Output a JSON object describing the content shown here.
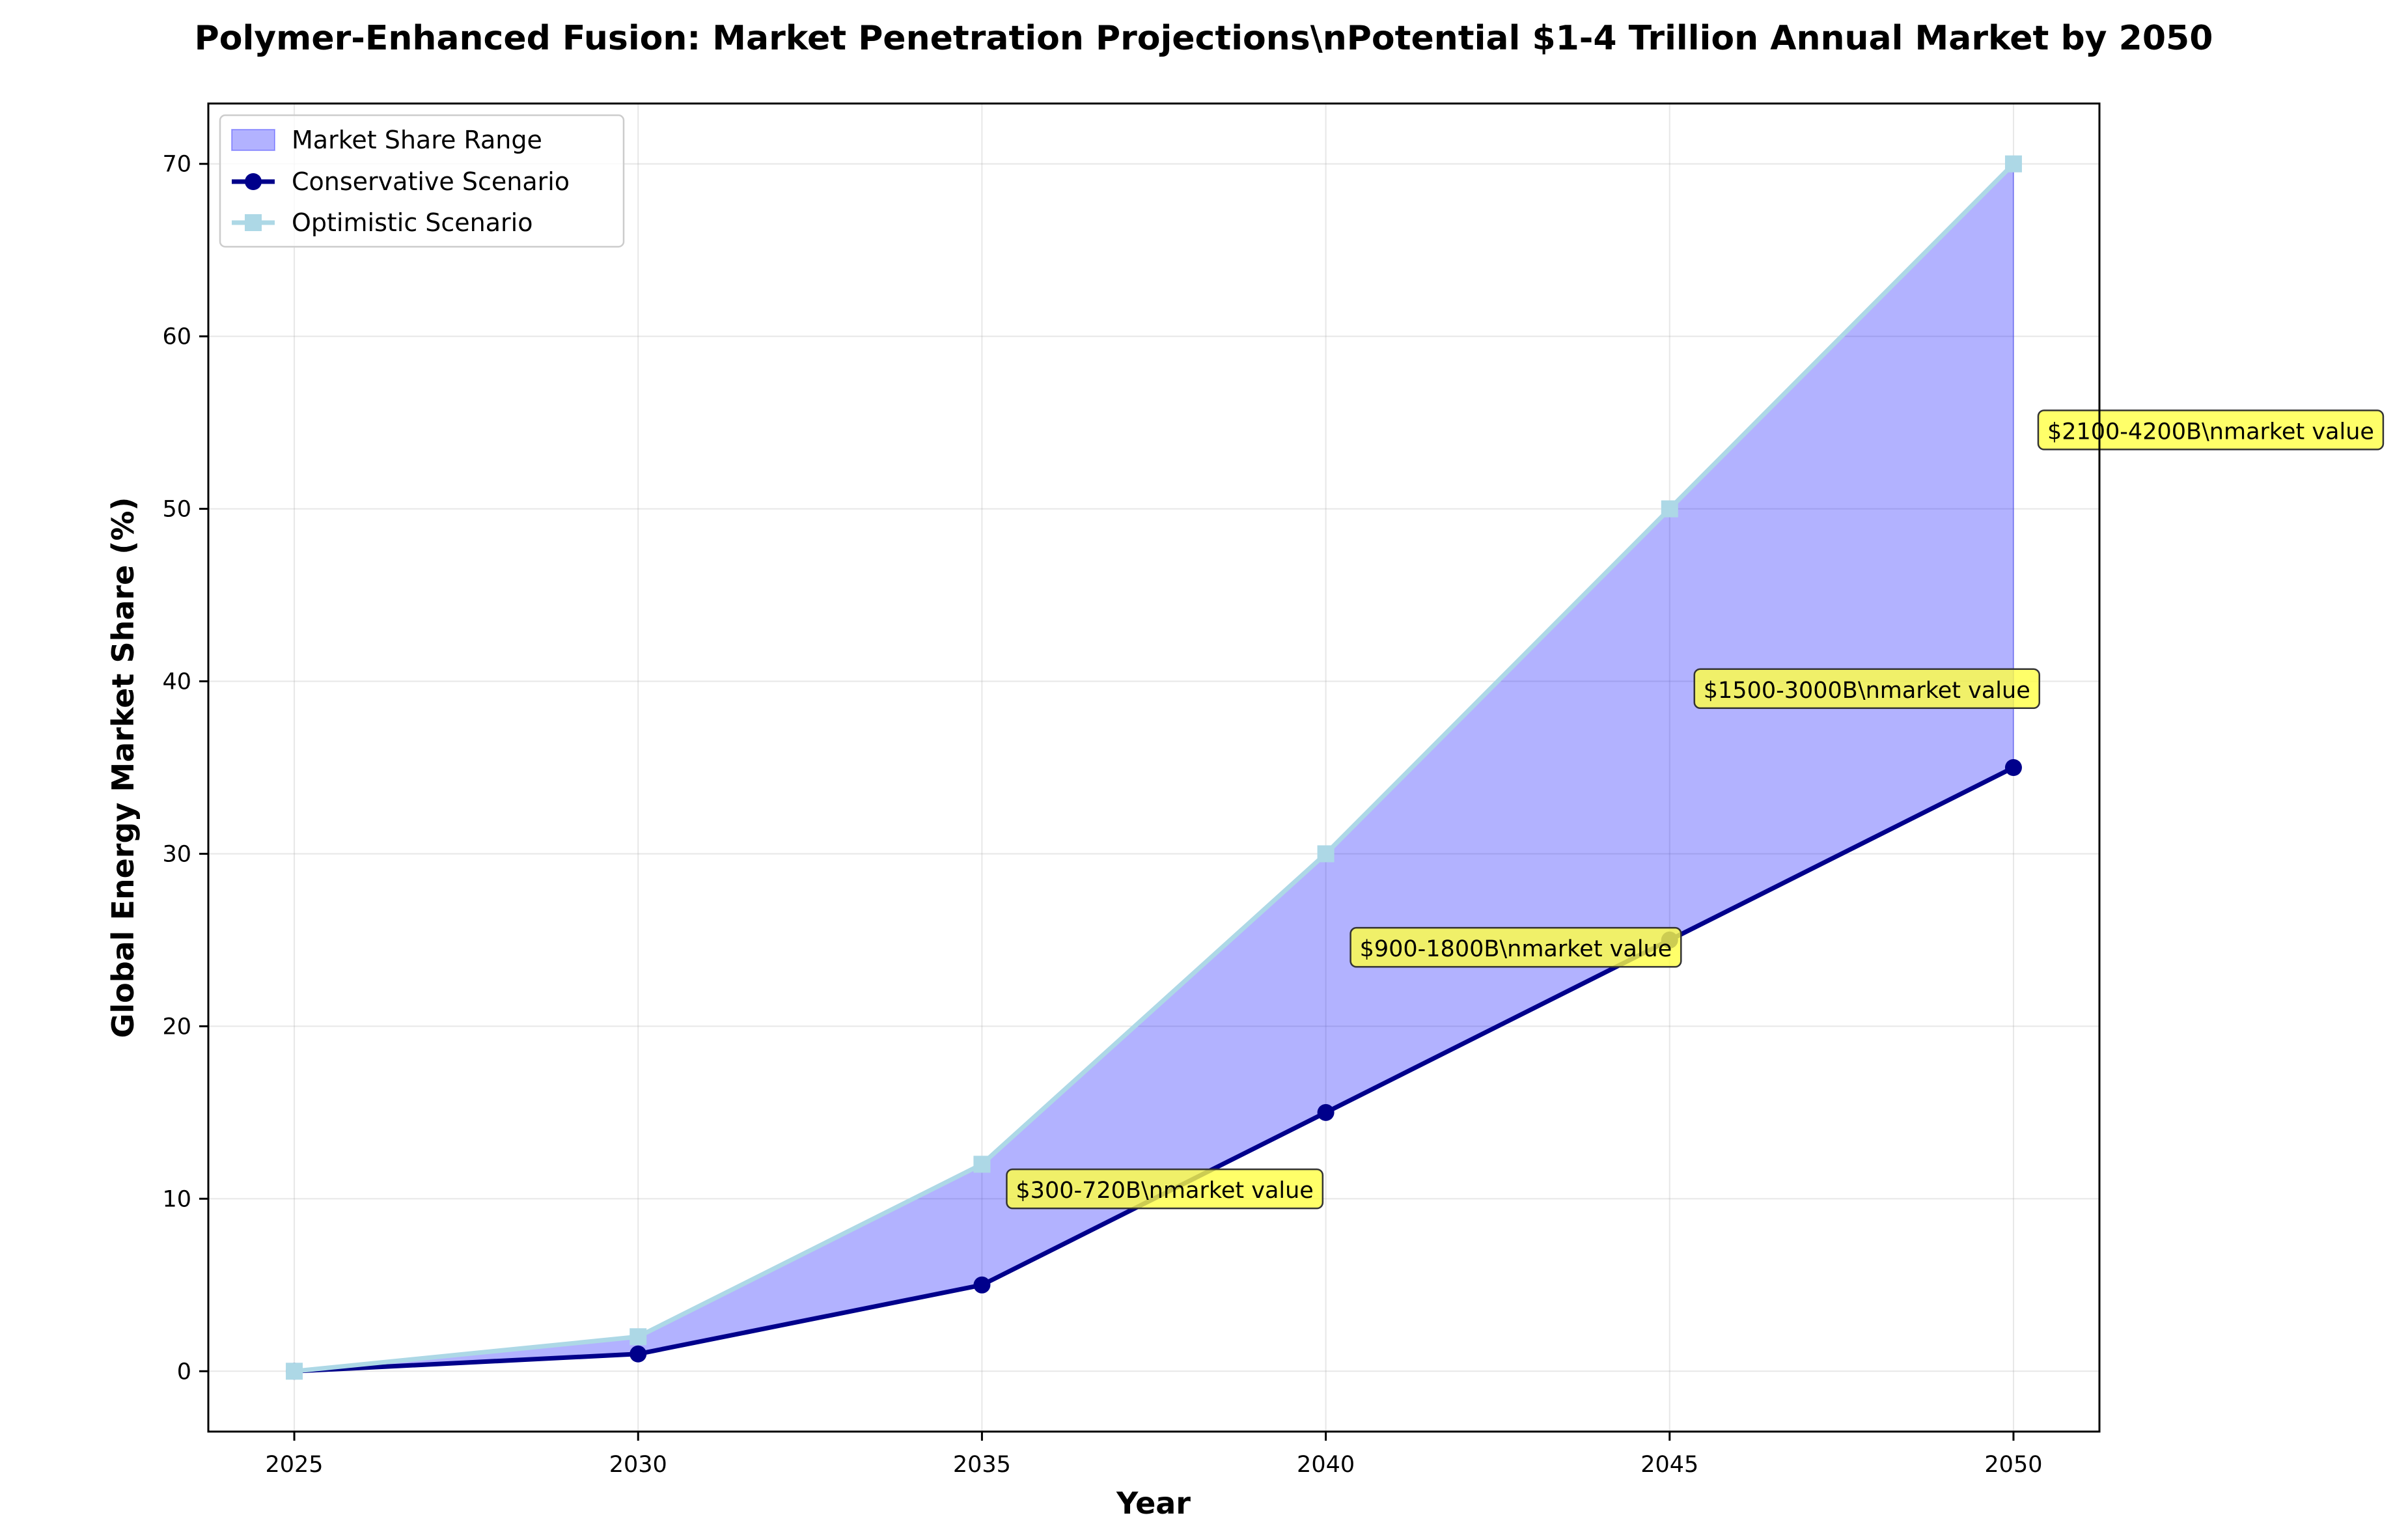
{
  "chart_data": {
    "type": "line",
    "title": "Polymer-Enhanced Fusion: Market Penetration Projections\\nPotential $1-4 Trillion Annual Market by 2050",
    "xlabel": "Year",
    "ylabel": "Global Energy Market Share (%)",
    "x": [
      2025,
      2030,
      2035,
      2040,
      2045,
      2050
    ],
    "xlim": [
      2023.75,
      2051.25
    ],
    "ylim": [
      -3.5,
      73.5
    ],
    "xticks": [
      2025,
      2030,
      2035,
      2040,
      2045,
      2050
    ],
    "yticks": [
      0,
      10,
      20,
      30,
      40,
      50,
      60,
      70
    ],
    "grid": true,
    "legend_position": "top-left",
    "fill": {
      "name": "Market Share Range",
      "color": "#0000ff",
      "between": [
        "Conservative Scenario",
        "Optimistic Scenario"
      ]
    },
    "series": [
      {
        "name": "Conservative Scenario",
        "values": [
          0,
          1,
          5,
          15,
          25,
          35
        ],
        "color": "#00008b",
        "marker": "circle"
      },
      {
        "name": "Optimistic Scenario",
        "values": [
          0,
          2,
          12,
          30,
          50,
          70
        ],
        "color": "#add8e6",
        "marker": "square"
      }
    ],
    "annotations": [
      {
        "text": "$300-720B\\nmarket value",
        "x": 2035,
        "y": 10.5
      },
      {
        "text": "$900-1800B\\nmarket value",
        "x": 2040,
        "y": 24.5
      },
      {
        "text": "$1500-3000B\\nmarket value",
        "x": 2045,
        "y": 39.5
      },
      {
        "text": "$2100-4200B\\nmarket value",
        "x": 2050,
        "y": 54.5
      }
    ],
    "annotation_color": "#ffff44"
  }
}
